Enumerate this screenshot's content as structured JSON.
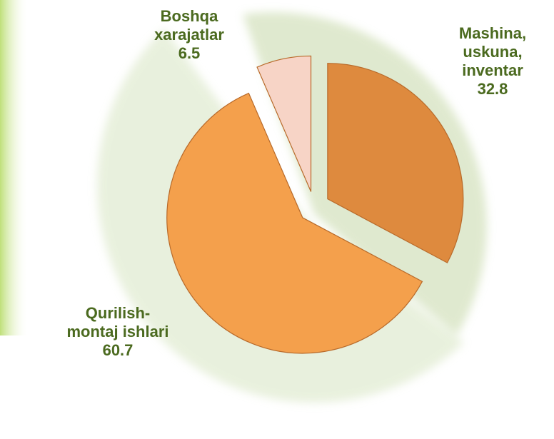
{
  "chart_data": {
    "type": "pie",
    "categories": [
      "Mashina, uskuna, inventar",
      "Qurilish-montaj ishlari",
      "Boshqa xarajatlar"
    ],
    "values": [
      32.8,
      60.7,
      6.5
    ],
    "colors": [
      "#de8a3e",
      "#f4a04c",
      "#f7d4c6"
    ],
    "label_color": "#4b6a1f"
  }
}
